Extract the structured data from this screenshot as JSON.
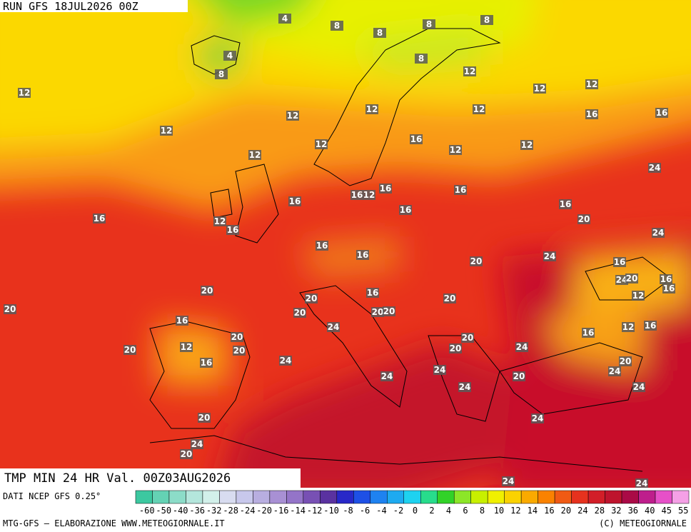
{
  "header": {
    "run": "RUN GFS 18JUL2026 00Z"
  },
  "map": {
    "title": "TMP MIN 24 HR Val. 00Z03AUG2026",
    "labels": [
      4,
      8,
      8,
      8,
      8,
      4,
      8,
      8,
      12,
      12,
      12,
      12,
      12,
      12,
      12,
      16,
      16,
      12,
      12,
      16,
      12,
      12,
      12,
      24,
      16,
      12,
      16,
      16,
      16,
      16,
      16,
      12,
      16,
      16,
      20,
      24,
      16,
      16,
      20,
      24,
      16,
      24,
      20,
      16,
      16,
      12,
      20,
      20,
      16,
      20,
      20,
      20,
      20,
      20,
      16,
      24,
      12,
      16,
      16,
      20,
      20,
      12,
      20,
      20,
      20,
      24,
      24,
      16,
      20,
      24,
      24,
      24,
      20,
      24,
      24,
      20,
      24,
      24,
      20,
      24,
      24
    ]
  },
  "footer": {
    "source": "DATI NCEP GFS 0.25°",
    "credit": "MTG-GFS — ELABORAZIONE WWW.METEOGIORNALE.IT",
    "copyright": "(C) METEOGIORNALE",
    "scale": [
      -60,
      -50,
      -40,
      -36,
      -32,
      -28,
      -24,
      -20,
      -16,
      -14,
      -12,
      -10,
      -8,
      -6,
      -4,
      -2,
      0,
      2,
      4,
      6,
      8,
      10,
      12,
      14,
      16,
      20,
      24,
      28,
      32,
      36,
      40,
      45,
      55
    ]
  }
}
